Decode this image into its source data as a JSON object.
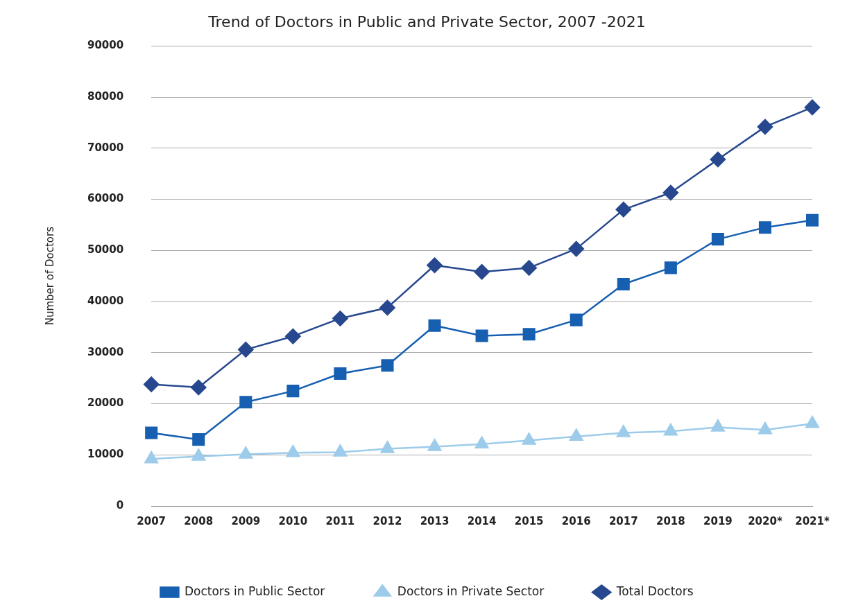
{
  "chart_data": {
    "type": "line",
    "title": "Trend of Doctors in Public and Private Sector, 2007 -2021",
    "ylabel": "Number of Doctors",
    "categories": [
      "2007",
      "2008",
      "2009",
      "2010",
      "2011",
      "2012",
      "2013",
      "2014",
      "2015",
      "2016",
      "2017",
      "2018",
      "2019",
      "2020*",
      "2021*"
    ],
    "series": [
      {
        "name": "Doctors in Public Sector",
        "color": "#175fb0",
        "marker": "square",
        "values": [
          14300,
          13000,
          20300,
          22500,
          25900,
          27500,
          35300,
          33300,
          33600,
          36400,
          43400,
          46600,
          52200,
          54500,
          55900
        ]
      },
      {
        "name": "Doctors in Private Sector",
        "color": "#9dcbea",
        "marker": "triangle",
        "values": [
          9200,
          9700,
          10100,
          10400,
          10500,
          11200,
          11600,
          12100,
          12800,
          13600,
          14300,
          14600,
          15400,
          14900,
          16100
        ]
      },
      {
        "name": "Total Doctors",
        "color": "#27488e",
        "marker": "diamond",
        "values": [
          23800,
          23200,
          30600,
          33200,
          36700,
          38800,
          47100,
          45800,
          46600,
          50300,
          58000,
          61300,
          67800,
          74200,
          78000
        ]
      }
    ],
    "ylim": [
      0,
      90000
    ],
    "yticks": [
      0,
      10000,
      20000,
      30000,
      40000,
      50000,
      60000,
      70000,
      80000,
      90000
    ],
    "grid": "y",
    "legend": "bottom"
  }
}
